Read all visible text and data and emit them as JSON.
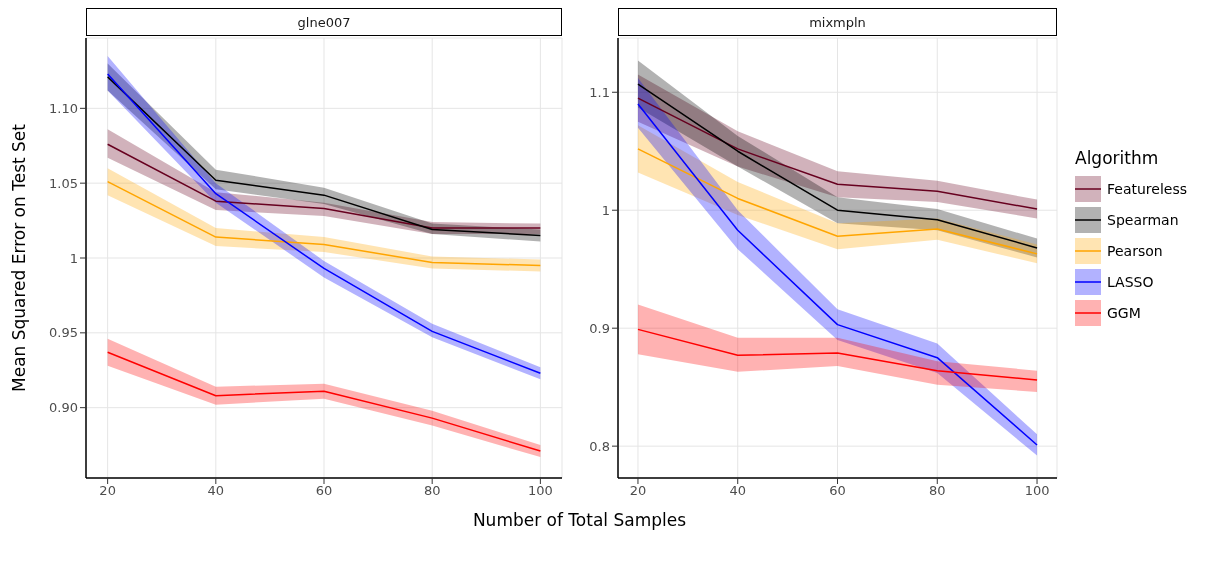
{
  "chart_data": [
    {
      "type": "line",
      "title": "glne007",
      "xlabel": "Number of Total Samples",
      "ylabel": "Mean Squared Error on Test Set",
      "x": [
        20,
        40,
        60,
        80,
        100
      ],
      "xlim": [
        16,
        104
      ],
      "xticks": [
        20,
        40,
        60,
        80,
        100
      ],
      "ylim": [
        0.853,
        1.147
      ],
      "yticks": [
        {
          "value": 0.9,
          "label": "0.90"
        },
        0.95,
        1,
        1.05,
        {
          "value": 1.1,
          "label": "1.10"
        }
      ],
      "grid": true,
      "series": [
        {
          "color": "#67001f",
          "values": [
            1.076,
            1.038,
            1.033,
            1.02,
            1.02
          ],
          "lower": [
            1.067,
            1.032,
            1.028,
            1.016,
            1.016
          ],
          "upper": [
            1.086,
            1.044,
            1.037,
            1.024,
            1.023
          ]
        },
        {
          "color": "#000000",
          "values": [
            1.121,
            1.052,
            1.042,
            1.019,
            1.015
          ],
          "lower": [
            1.112,
            1.046,
            1.036,
            1.016,
            1.011
          ],
          "upper": [
            1.13,
            1.059,
            1.047,
            1.023,
            1.019
          ]
        },
        {
          "color": "#ffa500",
          "values": [
            1.051,
            1.014,
            1.009,
            0.997,
            0.995
          ],
          "lower": [
            1.042,
            1.008,
            1.004,
            0.993,
            0.991
          ],
          "upper": [
            1.06,
            1.02,
            1.014,
            1.001,
            0.999
          ]
        },
        {
          "color": "#0000ff",
          "values": [
            1.123,
            1.043,
            0.993,
            0.951,
            0.923
          ],
          "lower": [
            1.112,
            1.037,
            0.987,
            0.947,
            0.919
          ],
          "upper": [
            1.135,
            1.05,
            0.998,
            0.956,
            0.927
          ]
        },
        {
          "color": "#ff0000",
          "values": [
            0.937,
            0.908,
            0.911,
            0.893,
            0.871
          ],
          "lower": [
            0.928,
            0.902,
            0.906,
            0.888,
            0.867
          ],
          "upper": [
            0.946,
            0.914,
            0.916,
            0.898,
            0.875
          ]
        }
      ]
    },
    {
      "type": "line",
      "title": "mixmpln",
      "legend_title": "Algorithm",
      "x": [
        20,
        40,
        60,
        80,
        100
      ],
      "xlim": [
        16,
        104
      ],
      "xticks": [
        20,
        40,
        60,
        80,
        100
      ],
      "ylim": [
        0.773,
        1.146
      ],
      "yticks": [
        0.8,
        0.9,
        1,
        1.1
      ],
      "grid": true,
      "legend": "right",
      "series": [
        {
          "name": "Featureless",
          "color": "#67001f",
          "values": [
            1.095,
            1.052,
            1.022,
            1.016,
            1.001
          ],
          "lower": [
            1.075,
            1.037,
            1.011,
            1.007,
            0.993
          ],
          "upper": [
            1.115,
            1.067,
            1.033,
            1.025,
            1.009
          ]
        },
        {
          "name": "Spearman",
          "color": "#000000",
          "values": [
            1.107,
            1.05,
            1.0,
            0.992,
            0.968
          ],
          "lower": [
            1.087,
            1.037,
            0.989,
            0.983,
            0.96
          ],
          "upper": [
            1.127,
            1.063,
            1.011,
            1.001,
            0.976
          ]
        },
        {
          "name": "Pearson",
          "color": "#ffa500",
          "values": [
            1.052,
            1.01,
            0.978,
            0.984,
            0.963
          ],
          "lower": [
            1.032,
            0.996,
            0.967,
            0.975,
            0.955
          ],
          "upper": [
            1.072,
            1.024,
            0.989,
            0.993,
            0.971
          ]
        },
        {
          "name": "LASSO",
          "color": "#0000ff",
          "values": [
            1.09,
            0.983,
            0.903,
            0.875,
            0.801
          ],
          "lower": [
            1.07,
            0.967,
            0.89,
            0.862,
            0.792
          ],
          "upper": [
            1.112,
            1.0,
            0.916,
            0.887,
            0.81
          ]
        },
        {
          "name": "GGM",
          "color": "#ff0000",
          "values": [
            0.899,
            0.877,
            0.879,
            0.864,
            0.856
          ],
          "lower": [
            0.878,
            0.863,
            0.868,
            0.852,
            0.846
          ],
          "upper": [
            0.92,
            0.892,
            0.892,
            0.872,
            0.864
          ]
        }
      ]
    }
  ]
}
